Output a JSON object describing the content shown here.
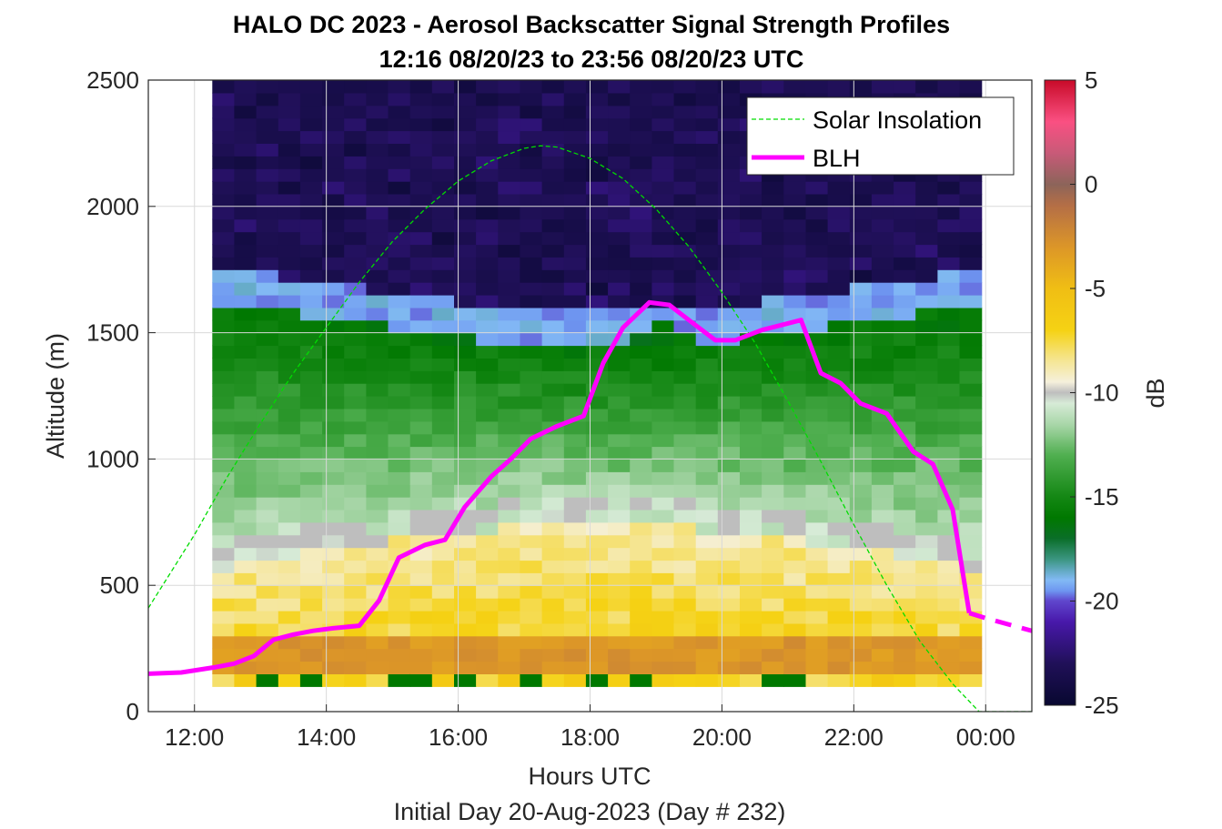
{
  "chart_data": {
    "type": "heatmap",
    "title": "HALO DC 2023 - Aerosol Backscatter Signal Strength Profiles",
    "subtitle": "12:16 08/20/23 to 23:56 08/20/23  UTC",
    "xlabel": "Hours UTC",
    "xlabel2": "Initial Day 20-Aug-2023 (Day # 232)",
    "ylabel": "Altitude (m)",
    "xlim": [
      11.3,
      24.7
    ],
    "ylim": [
      0,
      2500
    ],
    "x_ticks": [
      12,
      14,
      16,
      18,
      20,
      22,
      24
    ],
    "x_tick_labels": [
      "12:00",
      "14:00",
      "16:00",
      "18:00",
      "20:00",
      "22:00",
      "00:00"
    ],
    "y_ticks": [
      0,
      500,
      1000,
      1500,
      2000,
      2500
    ],
    "y_tick_labels": [
      "0",
      "500",
      "1000",
      "1500",
      "2000",
      "2500"
    ],
    "colorbar": {
      "label": "dB",
      "range": [
        -25,
        5
      ],
      "ticks": [
        -25,
        -20,
        -15,
        -10,
        -5,
        0,
        5
      ],
      "tick_labels": [
        "-25",
        "-20",
        "-15",
        "-10",
        "-5",
        "0",
        "5"
      ]
    },
    "grid": true,
    "legend": {
      "position": "top-right",
      "entries": [
        "Solar Insolation",
        "BLH"
      ]
    },
    "heatmap": {
      "time_start": 12.27,
      "time_end": 23.93,
      "alt_start": 100,
      "alt_end": 2500,
      "note_cells": "columns every ~20 min, rows every 50 m; values in dB",
      "profiles": [
        {
          "time": 12.27,
          "blh_ref": 180,
          "lofting_top": 1700
        },
        {
          "time": 14.0,
          "blh_ref": 320,
          "lofting_top": 1750
        },
        {
          "time": 16.0,
          "blh_ref": 870,
          "lofting_top": 1700
        },
        {
          "time": 18.0,
          "blh_ref": 1300,
          "lofting_top": 1620
        },
        {
          "time": 20.0,
          "blh_ref": 1470,
          "lofting_top": 1550
        },
        {
          "time": 22.0,
          "blh_ref": 1230,
          "lofting_top": 1600
        },
        {
          "time": 23.93,
          "blh_ref": 400,
          "lofting_top": 1700
        }
      ]
    },
    "series": [
      {
        "name": "Solar Insolation",
        "style": "dashed",
        "color": "#00dd00",
        "x": [
          11.3,
          12.0,
          12.5,
          13.0,
          13.5,
          14.0,
          14.5,
          15.0,
          15.5,
          16.0,
          16.5,
          17.0,
          17.25,
          17.5,
          18.0,
          18.5,
          19.0,
          19.5,
          20.0,
          20.5,
          21.0,
          21.5,
          22.0,
          22.5,
          23.0,
          23.5,
          23.9,
          24.1,
          24.7
        ],
        "y": [
          410,
          700,
          930,
          1140,
          1340,
          1520,
          1700,
          1860,
          1990,
          2100,
          2180,
          2230,
          2240,
          2235,
          2190,
          2110,
          1990,
          1840,
          1660,
          1460,
          1230,
          990,
          740,
          500,
          280,
          110,
          0,
          0,
          0
        ]
      },
      {
        "name": "BLH",
        "style": "solid",
        "color": "#ff00ff",
        "x": [
          11.3,
          11.8,
          12.3,
          12.6,
          12.9,
          13.2,
          13.5,
          13.8,
          14.1,
          14.5,
          14.8,
          15.1,
          15.5,
          15.8,
          16.1,
          16.5,
          16.8,
          17.1,
          17.5,
          17.9,
          18.2,
          18.5,
          18.9,
          19.2,
          19.6,
          19.9,
          20.2,
          20.6,
          21.2,
          21.5,
          21.8,
          22.1,
          22.5,
          22.9,
          23.2,
          23.5,
          23.75
        ],
        "y": [
          150,
          155,
          175,
          190,
          220,
          285,
          305,
          320,
          330,
          340,
          440,
          610,
          660,
          680,
          810,
          930,
          1000,
          1080,
          1130,
          1170,
          1380,
          1520,
          1620,
          1610,
          1530,
          1470,
          1470,
          1510,
          1550,
          1340,
          1300,
          1220,
          1180,
          1030,
          980,
          800,
          390
        ],
        "dashed_extension": {
          "x": [
            23.75,
            24.0,
            24.7
          ],
          "y": [
            390,
            370,
            320
          ]
        }
      }
    ]
  }
}
